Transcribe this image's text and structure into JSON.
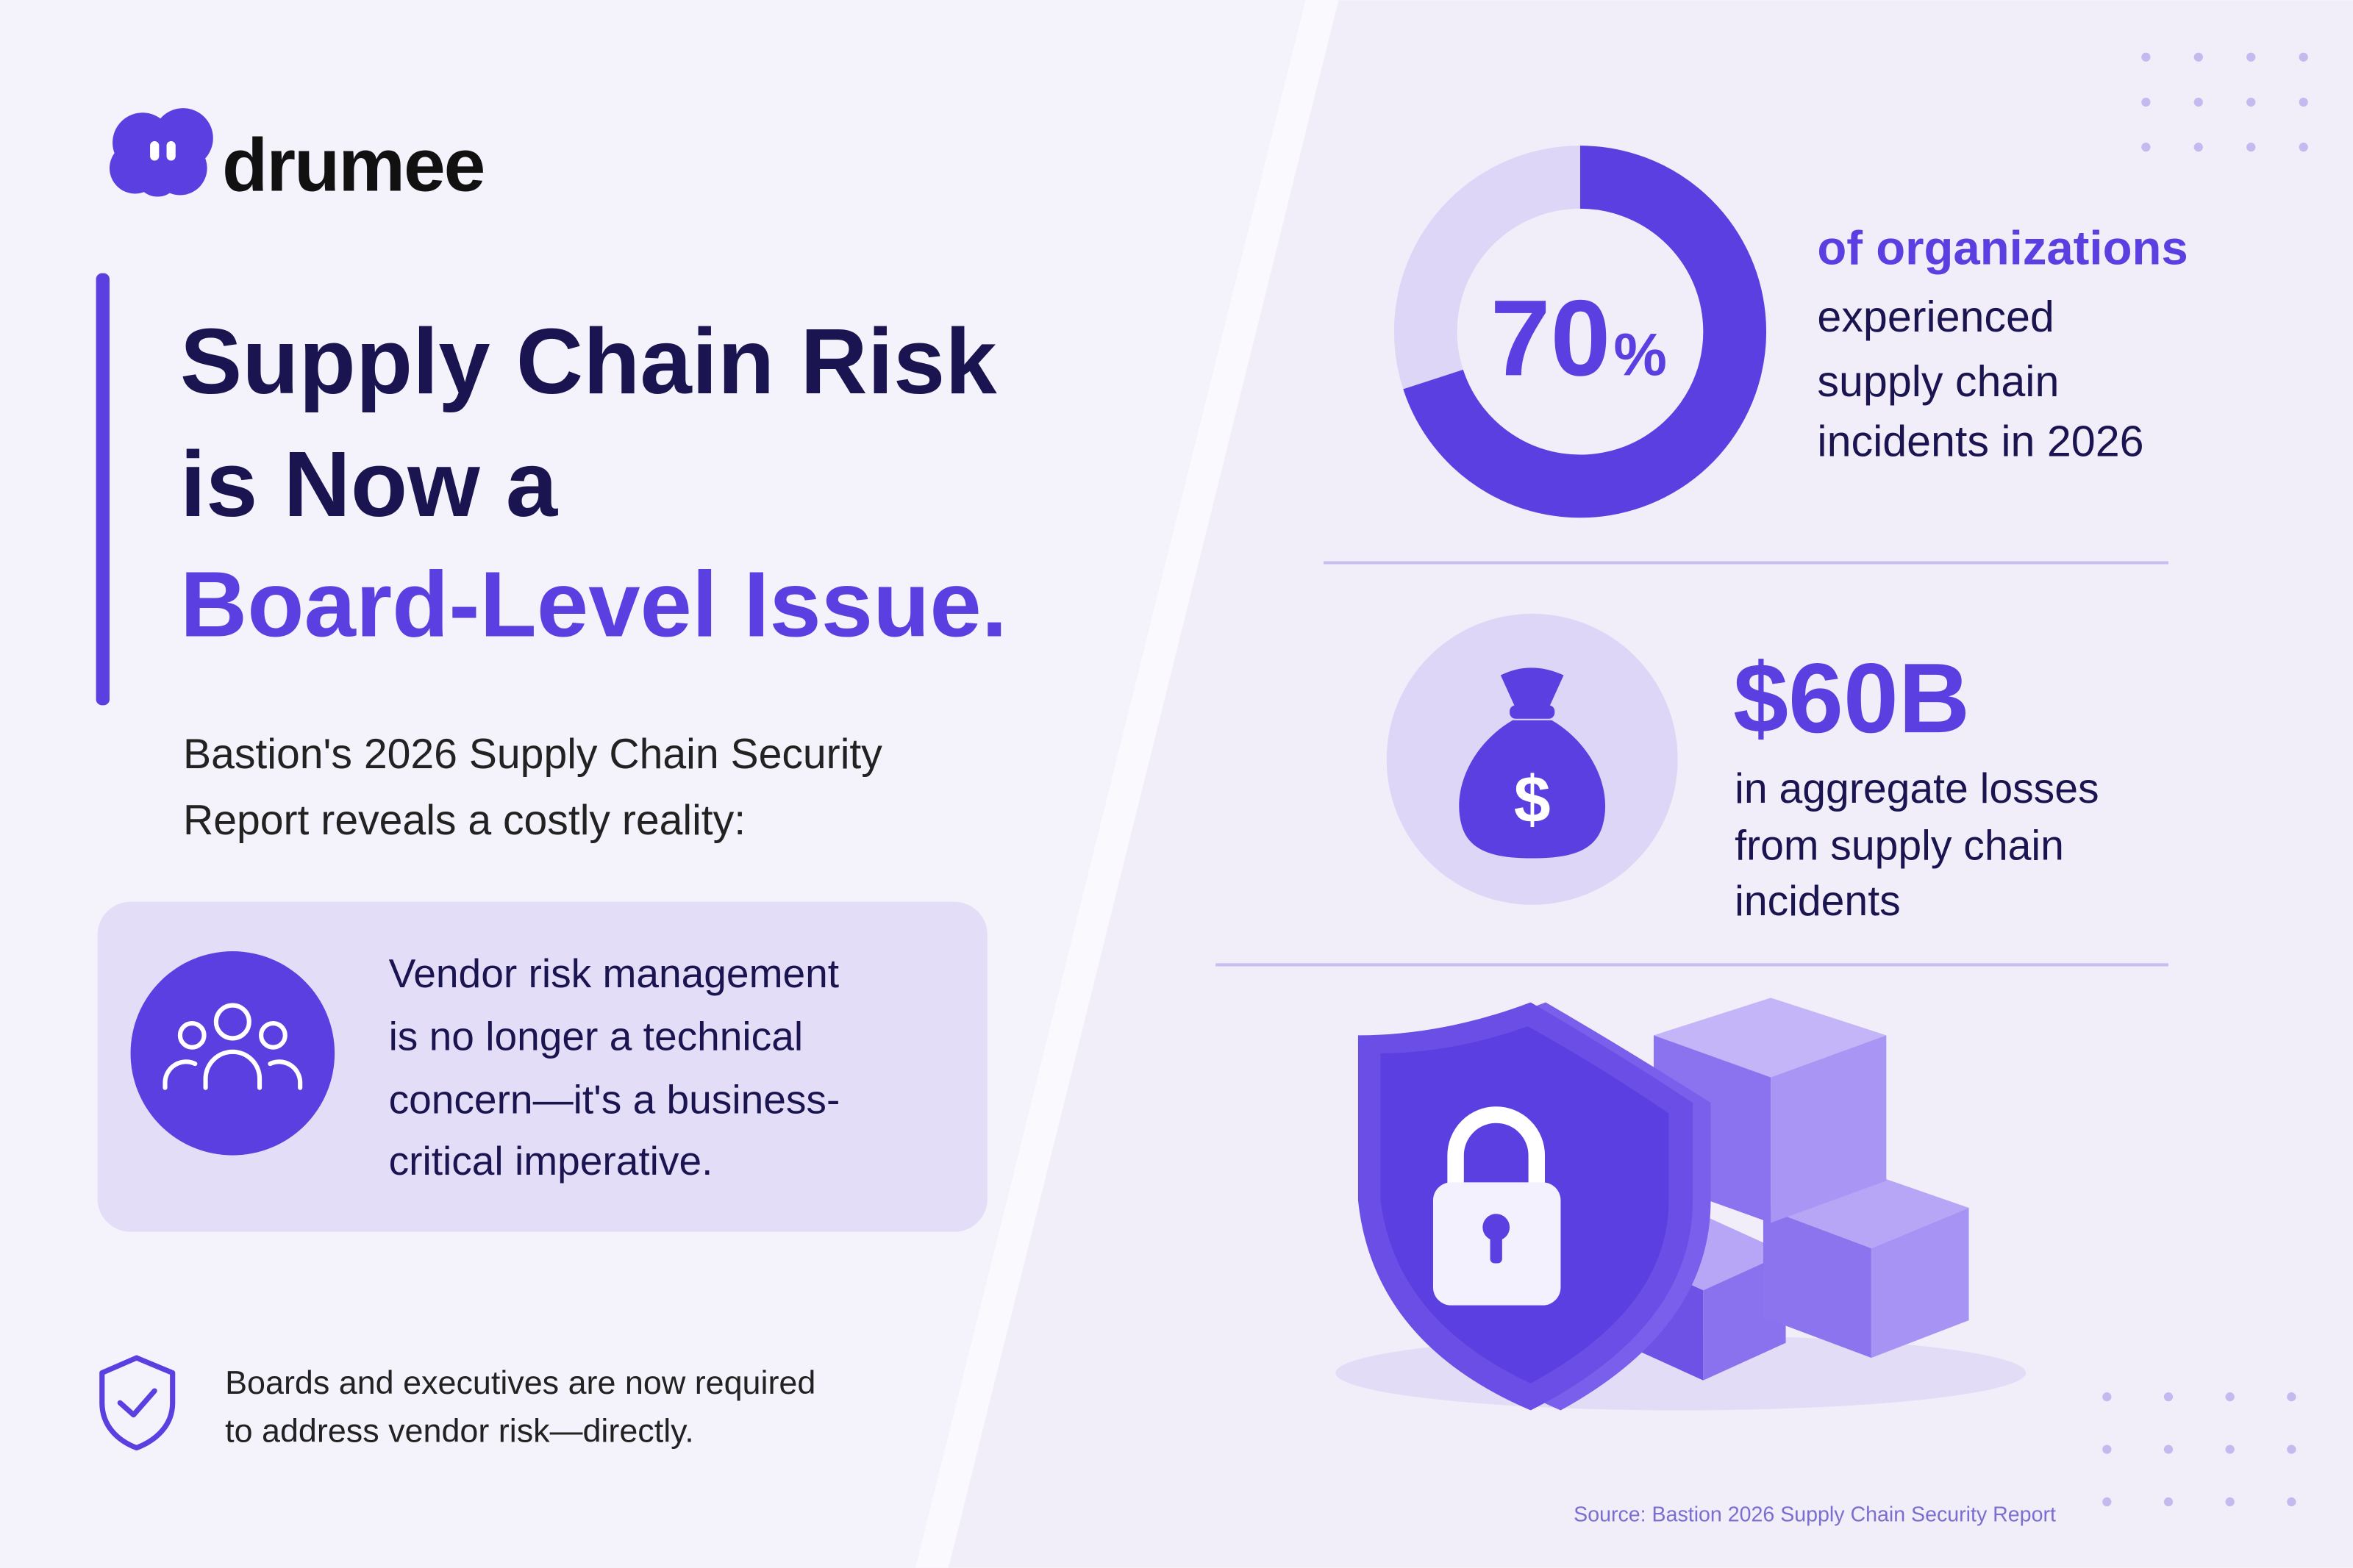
{
  "logo": {
    "text": "drumee"
  },
  "headline": {
    "lines": [
      "Supply Chain Risk",
      "is Now a",
      "Board-Level Issue."
    ]
  },
  "intro": {
    "lines": [
      "Bastion's 2026 Supply Chain Security",
      "Report reveals a costly reality:"
    ]
  },
  "callout": {
    "lines": [
      "Vendor risk management",
      "is no longer a technical",
      "concern—it's a business-",
      "critical imperative."
    ]
  },
  "footer_note": {
    "lines": [
      "Boards and executives are now required",
      "to address vendor risk—directly."
    ]
  },
  "stats": [
    {
      "value": 70,
      "number": "70",
      "unit": "%",
      "lines": [
        "of organizations",
        "experienced",
        "supply chain",
        "incidents in 2026"
      ]
    },
    {
      "figure": "$60B",
      "lines": [
        "in aggregate losses",
        "from supply chain",
        "incidents"
      ]
    }
  ],
  "source": "Source: Bastion 2026 Supply Chain Security Report"
}
